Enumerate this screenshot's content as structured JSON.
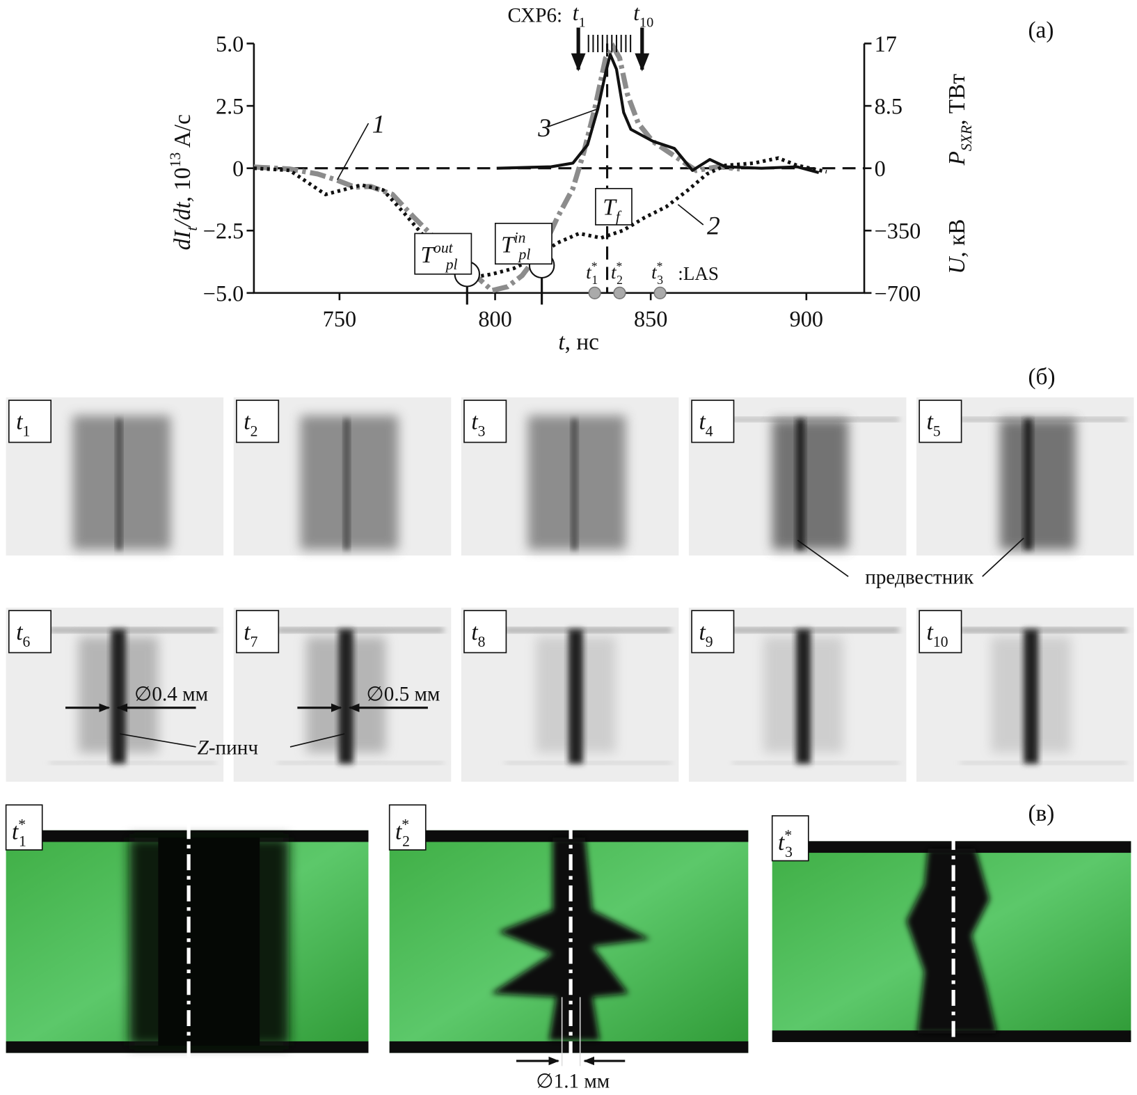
{
  "chart_data": {
    "type": "line",
    "panel_label": "(a)",
    "xlabel": [
      {
        "text": "t",
        "italic": true
      },
      {
        "text": ", нс"
      }
    ],
    "ylabel": [
      {
        "text": "dI",
        "italic": true
      },
      {
        "text": "t",
        "pos": "sub",
        "italic": true
      },
      {
        "text": "/dt",
        "italic": true
      },
      {
        "text": ", 10"
      },
      {
        "text": "13",
        "pos": "sup"
      },
      {
        "text": " A/c"
      }
    ],
    "y2label": [
      {
        "text": "P",
        "italic": true
      },
      {
        "text": "SXR",
        "pos": "sub",
        "italic": true
      },
      {
        "text": ", ТВт"
      }
    ],
    "y3label": [
      {
        "text": "U",
        "italic": true
      },
      {
        "text": ", кВ"
      }
    ],
    "xlim": [
      722.5,
      918.6
    ],
    "xticks": [
      750,
      800,
      850,
      900
    ],
    "ylim": [
      -5,
      5
    ],
    "yticks": [
      {
        "value": 5,
        "label": "5.0"
      },
      {
        "value": 2.5,
        "label": "2.5"
      },
      0,
      {
        "value": -2.5,
        "label": "−2.5"
      },
      {
        "value": -5,
        "label": "−5.0"
      }
    ],
    "y2lim": [
      -17,
      17
    ],
    "y2ticks": [
      17,
      8.5,
      0
    ],
    "y3lim": [
      -700,
      700
    ],
    "y3ticks": [
      {
        "value": -350,
        "label": "−350"
      },
      {
        "value": -700,
        "label": "−700"
      }
    ],
    "series": [
      {
        "name": "1",
        "color": "#8c8c8c",
        "linestyle": "dashdot",
        "axis": "y",
        "x": [
          722.5,
          734,
          743,
          749,
          755,
          760,
          767,
          774,
          781,
          788,
          795,
          799,
          804,
          808.7,
          815.7,
          820,
          825,
          828.5,
          832,
          835.5,
          838,
          840,
          842.5,
          846,
          850.6,
          857.6,
          864.6,
          871.6,
          878.6
        ],
        "values": [
          0.05,
          -0.03,
          -0.23,
          -0.47,
          -0.76,
          -0.73,
          -1.05,
          -1.98,
          -2.85,
          -3.95,
          -4.45,
          -4.9,
          -4.75,
          -4.3,
          -3.14,
          -1.98,
          -0.81,
          0.64,
          2.38,
          4.42,
          4.86,
          4.42,
          2.97,
          1.8,
          1.08,
          0.49,
          -0.09,
          0.06,
          -0.03
        ]
      },
      {
        "name": "2",
        "color": "#111111",
        "linestyle": "dotted",
        "axis": "y3",
        "x": [
          722.5,
          734,
          741,
          745.5,
          751,
          757,
          764,
          771,
          778,
          785,
          792,
          799,
          806,
          813,
          820,
          827,
          834,
          841,
          848,
          855,
          862,
          868,
          874,
          883,
          891,
          897,
          906.5
        ],
        "values": [
          0,
          -12,
          -94,
          -147,
          -122,
          -94,
          -122,
          -256,
          -399,
          -541,
          -615,
          -594,
          -562,
          -501,
          -419,
          -366,
          -391,
          -350,
          -277,
          -216,
          -122,
          -33,
          16,
          28,
          57,
          16,
          -20
        ]
      },
      {
        "name": "3",
        "color": "#111111",
        "linestyle": "solid",
        "axis": "y2",
        "x": [
          800.5,
          818,
          825,
          829.7,
          833,
          835.5,
          837,
          839,
          841.3,
          843.6,
          850.6,
          857.6,
          863.4,
          869,
          874,
          885.6,
          897,
          904
        ],
        "values": [
          0,
          0.2,
          0.7,
          3.2,
          8.1,
          13,
          15.5,
          13.5,
          7.6,
          5.3,
          3.7,
          2.7,
          -0.3,
          1.2,
          0.2,
          0,
          0.2,
          -0.6
        ]
      }
    ],
    "cxr6_label": "СХР6:",
    "cxr6_times": [
      830,
      831.5,
      833,
      834.5,
      836,
      837.5,
      839,
      840.5,
      842,
      843.5
    ],
    "cxr6_first": [
      {
        "text": "t",
        "italic": true
      },
      {
        "text": "1",
        "pos": "sub"
      }
    ],
    "cxr6_last": [
      {
        "text": "t",
        "italic": true
      },
      {
        "text": "10",
        "pos": "sub"
      }
    ],
    "t_f": 836,
    "t_f_label": [
      {
        "text": "T",
        "italic": true
      },
      {
        "text": "f",
        "pos": "sub",
        "italic": true
      }
    ],
    "t_pl_out": 791,
    "t_pl_out_label": [
      {
        "text": "T",
        "italic": true
      },
      {
        "text": "out",
        "pos": "sup",
        "italic": true
      },
      {
        "text": "pl",
        "pos": "sub",
        "italic": true
      }
    ],
    "t_pl_in": 815,
    "t_pl_in_label": [
      {
        "text": "T",
        "italic": true
      },
      {
        "text": "in",
        "pos": "sup",
        "italic": true
      },
      {
        "text": "pl",
        "pos": "sub",
        "italic": true
      }
    ],
    "las_times": [
      832,
      840,
      853
    ],
    "las_labels": [
      [
        {
          "text": "t",
          "italic": true
        },
        {
          "text": "*",
          "pos": "sup"
        },
        {
          "text": "1",
          "pos": "sub"
        }
      ],
      [
        {
          "text": "t",
          "italic": true
        },
        {
          "text": "*",
          "pos": "sup"
        },
        {
          "text": "2",
          "pos": "sub"
        }
      ],
      [
        {
          "text": "t",
          "italic": true
        },
        {
          "text": "*",
          "pos": "sup"
        },
        {
          "text": "3",
          "pos": "sub"
        }
      ]
    ],
    "las_name": ":LAS"
  },
  "panels": {
    "b_label": "(б)",
    "c_label": "(в)",
    "frames": [
      [
        {
          "text": "t",
          "italic": true
        },
        {
          "text": "1",
          "pos": "sub"
        }
      ],
      [
        {
          "text": "t",
          "italic": true
        },
        {
          "text": "2",
          "pos": "sub"
        }
      ],
      [
        {
          "text": "t",
          "italic": true
        },
        {
          "text": "3",
          "pos": "sub"
        }
      ],
      [
        {
          "text": "t",
          "italic": true
        },
        {
          "text": "4",
          "pos": "sub"
        }
      ],
      [
        {
          "text": "t",
          "italic": true
        },
        {
          "text": "5",
          "pos": "sub"
        }
      ],
      [
        {
          "text": "t",
          "italic": true
        },
        {
          "text": "6",
          "pos": "sub"
        }
      ],
      [
        {
          "text": "t",
          "italic": true
        },
        {
          "text": "7",
          "pos": "sub"
        }
      ],
      [
        {
          "text": "t",
          "italic": true
        },
        {
          "text": "8",
          "pos": "sub"
        }
      ],
      [
        {
          "text": "t",
          "italic": true
        },
        {
          "text": "9",
          "pos": "sub"
        }
      ],
      [
        {
          "text": "t",
          "italic": true
        },
        {
          "text": "10",
          "pos": "sub"
        }
      ]
    ],
    "las_frames": [
      [
        {
          "text": "t",
          "italic": true
        },
        {
          "text": "*",
          "pos": "sup"
        },
        {
          "text": "1",
          "pos": "sub"
        }
      ],
      [
        {
          "text": "t",
          "italic": true
        },
        {
          "text": "*",
          "pos": "sup"
        },
        {
          "text": "2",
          "pos": "sub"
        }
      ],
      [
        {
          "text": "t",
          "italic": true
        },
        {
          "text": "*",
          "pos": "sup"
        },
        {
          "text": "3",
          "pos": "sub"
        }
      ]
    ],
    "precursor": "предвестник",
    "zpinch": [
      {
        "text": "Z",
        "italic": true
      },
      {
        "text": "-пинч"
      }
    ],
    "d1": "∅0.4 мм",
    "d2": "∅0.5 мм",
    "d3": "∅1.1 мм"
  }
}
